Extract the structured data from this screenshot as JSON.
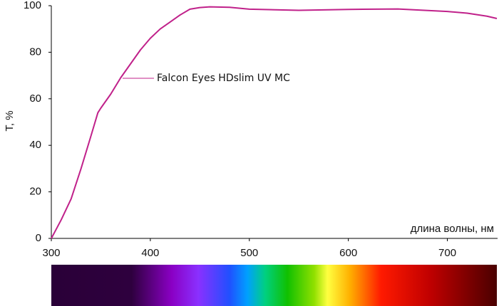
{
  "chart_data": {
    "type": "line",
    "x_label": "длина волны, нм",
    "y_label": "T, %",
    "annotation": "Falcon Eyes HDslim UV MC",
    "x": [
      300,
      305,
      310,
      320,
      330,
      340,
      347,
      350,
      360,
      370,
      380,
      390,
      400,
      410,
      420,
      430,
      440,
      450,
      460,
      480,
      500,
      550,
      600,
      650,
      700,
      720,
      740,
      750
    ],
    "series": [
      {
        "name": "Falcon Eyes HDslim UV MC",
        "color": "#c0218a",
        "values": [
          0,
          4,
          8,
          17,
          30,
          44,
          54,
          56,
          62,
          69,
          75,
          81,
          86,
          90,
          93,
          96,
          98.5,
          99.2,
          99.5,
          99.3,
          98.5,
          98,
          98.4,
          98.6,
          97.5,
          96.8,
          95.5,
          94.5
        ]
      }
    ],
    "xlim": [
      300,
      750
    ],
    "ylim": [
      0,
      100
    ],
    "xticks": [
      300,
      400,
      500,
      600,
      700
    ],
    "yticks": [
      0,
      20,
      40,
      60,
      80,
      100
    ]
  }
}
